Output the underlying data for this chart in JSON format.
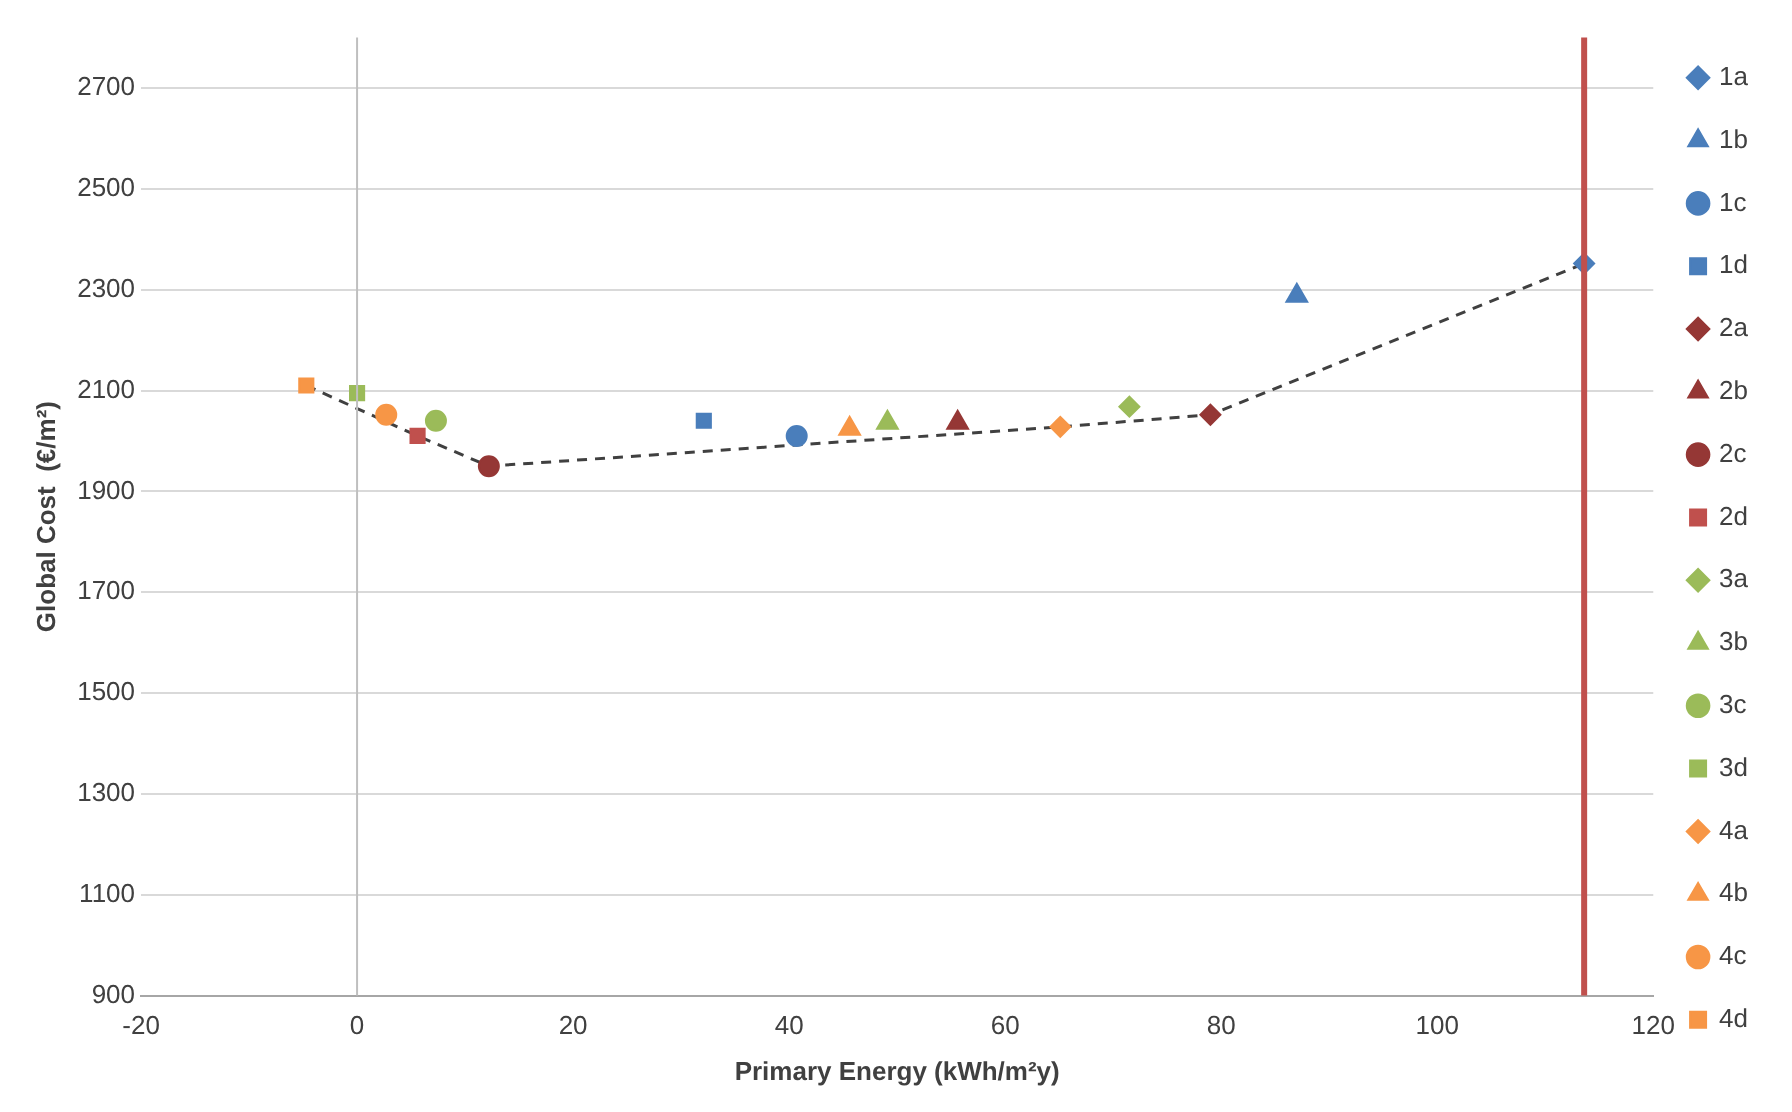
{
  "chart_data": {
    "type": "scatter",
    "xlabel": "Primary Energy (kWh/m²y)",
    "ylabel": "Global Cost  (€/m²)",
    "xlim": [
      -20,
      120
    ],
    "xticks": [
      -20,
      0,
      20,
      40,
      60,
      80,
      100,
      120
    ],
    "ylim": [
      900,
      2800
    ],
    "yticks": [
      900,
      1100,
      1300,
      1500,
      1700,
      1900,
      2100,
      2300,
      2500,
      2700
    ],
    "grid": "y",
    "legend": "right",
    "ref_lines": [
      {
        "axis": "x",
        "value": 0,
        "color": "#bfbfbf"
      },
      {
        "axis": "x",
        "value": 113.6,
        "color": "#c0504d"
      }
    ],
    "series": [
      {
        "type": "line",
        "color": "#404040",
        "marker": "none",
        "line_style": "dashed",
        "x": [
          -4.7,
          5.6,
          12.2,
          65.1,
          79.0,
          113.6
        ],
        "values": [
          2110,
          2010,
          1950,
          2028,
          2052,
          2352
        ]
      },
      {
        "name": "1a",
        "color": "#4a7ebb",
        "marker": "diamond",
        "x": [
          113.6
        ],
        "values": [
          2352
        ]
      },
      {
        "name": "1b",
        "color": "#4a7ebb",
        "marker": "triangle",
        "x": [
          87.0
        ],
        "values": [
          2288
        ]
      },
      {
        "name": "1c",
        "color": "#4a7ebb",
        "marker": "circle",
        "x": [
          40.7
        ],
        "values": [
          2010
        ]
      },
      {
        "name": "1d",
        "color": "#4a7ebb",
        "marker": "square",
        "x": [
          32.1
        ],
        "values": [
          2040
        ]
      },
      {
        "name": "2a",
        "color": "#953735",
        "marker": "diamond",
        "x": [
          79.0
        ],
        "values": [
          2052
        ]
      },
      {
        "name": "2b",
        "color": "#953735",
        "marker": "triangle",
        "x": [
          55.6
        ],
        "values": [
          2036
        ]
      },
      {
        "name": "2c",
        "color": "#953735",
        "marker": "circle",
        "x": [
          12.2
        ],
        "values": [
          1950
        ]
      },
      {
        "name": "2d",
        "color": "#c0504d",
        "marker": "square",
        "x": [
          5.6
        ],
        "values": [
          2010
        ]
      },
      {
        "name": "3a",
        "color": "#9bbb59",
        "marker": "diamond",
        "x": [
          71.5
        ],
        "values": [
          2068
        ]
      },
      {
        "name": "3b",
        "color": "#9bbb59",
        "marker": "triangle",
        "x": [
          49.1
        ],
        "values": [
          2036
        ]
      },
      {
        "name": "3c",
        "color": "#9bbb59",
        "marker": "circle",
        "x": [
          7.3
        ],
        "values": [
          2040
        ]
      },
      {
        "name": "3d",
        "color": "#9bbb59",
        "marker": "square",
        "x": [
          0
        ],
        "values": [
          2095
        ]
      },
      {
        "name": "4a",
        "color": "#f79646",
        "marker": "diamond",
        "x": [
          65.1
        ],
        "values": [
          2028
        ]
      },
      {
        "name": "4b",
        "color": "#f79646",
        "marker": "triangle",
        "x": [
          45.6
        ],
        "values": [
          2024
        ]
      },
      {
        "name": "4c",
        "color": "#f79646",
        "marker": "circle",
        "x": [
          2.7
        ],
        "values": [
          2052
        ]
      },
      {
        "name": "4d",
        "color": "#f79646",
        "marker": "square",
        "x": [
          -4.7
        ],
        "values": [
          2110
        ]
      }
    ]
  }
}
